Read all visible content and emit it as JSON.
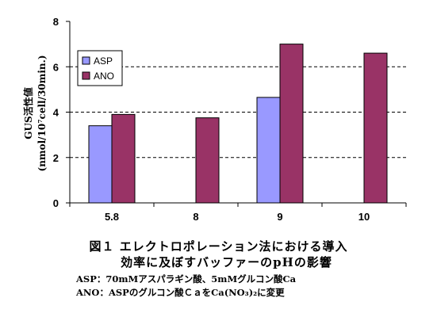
{
  "chart_data": {
    "type": "bar",
    "categories": [
      "5.8",
      "8",
      "9",
      "10"
    ],
    "series": [
      {
        "name": "ASP",
        "color": "#9999ff",
        "values": [
          3.4,
          null,
          4.65,
          null
        ]
      },
      {
        "name": "ANO",
        "color": "#993366",
        "values": [
          3.9,
          3.75,
          7.0,
          6.6
        ]
      }
    ],
    "ylabel_line1": "GUS活性値",
    "ylabel_line2": "(nmol/10⁷cell/30min.)",
    "ylim": [
      0,
      8
    ],
    "yticks": [
      "0",
      "2",
      "4",
      "6",
      "8"
    ],
    "grid": "horizontal dashed",
    "legend_position": "top-left"
  },
  "caption": {
    "line1": "図１ エレクトロポレーション法における導入",
    "line2": "効率に及ぼすバッファーのpHの影響"
  },
  "notes": {
    "asp": "ASP：70mMアスパラギン酸、5mMグルコン酸Ca",
    "ano": "ANO：ASPのグルコン酸ＣａをCa(NO₃)₂に変更"
  }
}
